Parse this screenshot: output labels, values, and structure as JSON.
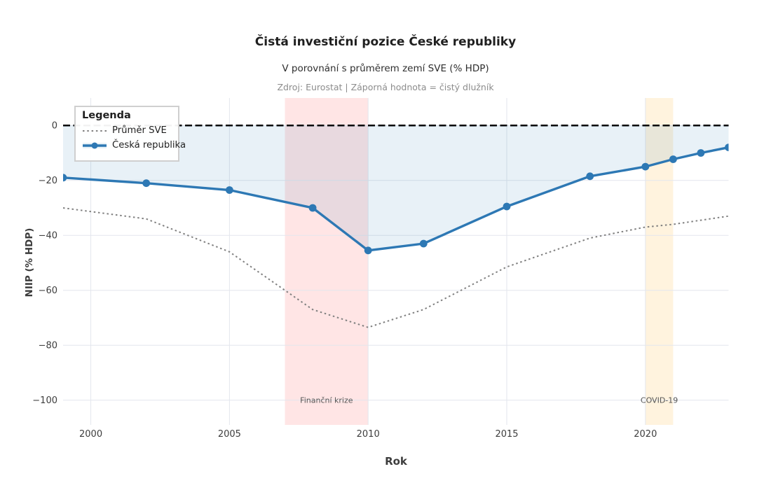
{
  "colors": {
    "czech_line": "#2d78b4",
    "sve_line": "#808080",
    "fill_under_zero": "rgba(31,119,180,0.10)",
    "zero_line": "#000000",
    "grid": "#e3e6ed",
    "crisis_band": "rgba(255,0,0,0.10)",
    "covid_band": "rgba(255,165,0,0.13)",
    "tick_text": "#3d3d3d",
    "band_label_text": "#555555"
  },
  "chart_data": {
    "type": "line",
    "title": "Čistá investiční pozice České republiky",
    "subtitle": "V porovnání s průměrem zemí SVE (% HDP)",
    "source_note": "Zdroj: Eurostat | Záporná hodnota = čistý dlužník",
    "xlabel": "Rok",
    "ylabel": "NIIP (% HDP)",
    "legend": {
      "title": "Legenda",
      "position": "upper left",
      "entries": [
        "Průměr SVE",
        "Česká republika"
      ]
    },
    "x": [
      1999,
      2002,
      2005,
      2008,
      2010,
      2012,
      2015,
      2018,
      2020,
      2021,
      2022,
      2023
    ],
    "series": [
      {
        "name": "Průměr SVE",
        "values": [
          -30,
          -34,
          -46,
          -67,
          -73.5,
          -67,
          -51.5,
          -41,
          -37,
          -36,
          -34.5,
          -33
        ],
        "color": "#808080",
        "line_style": "dotted",
        "markers": false
      },
      {
        "name": "Česká republika",
        "values": [
          -19,
          -21,
          -23.5,
          -30,
          -45.5,
          -43,
          -29.5,
          -18.5,
          -15,
          -12.3,
          -10,
          -8
        ],
        "color": "#2d78b4",
        "line_style": "solid",
        "markers": true,
        "fill_to_zero": true,
        "fill_color": "rgba(31,119,180,0.10)"
      }
    ],
    "xlim": [
      1999,
      2023
    ],
    "ylim": [
      -109,
      10
    ],
    "xticks": [
      2000,
      2005,
      2010,
      2015,
      2020
    ],
    "yticks": [
      0,
      -20,
      -40,
      -60,
      -80,
      -100
    ],
    "grid": true,
    "zero_line": {
      "show": true,
      "value": 0,
      "color": "#000000",
      "style": "dashed"
    },
    "bands": [
      {
        "label": "Finanční krize",
        "x_start": 2007,
        "x_end": 2010,
        "color": "rgba(255,0,0,0.10)"
      },
      {
        "label": "COVID-19",
        "x_start": 2020,
        "x_end": 2021,
        "color": "rgba(255,165,0,0.13)"
      }
    ]
  }
}
